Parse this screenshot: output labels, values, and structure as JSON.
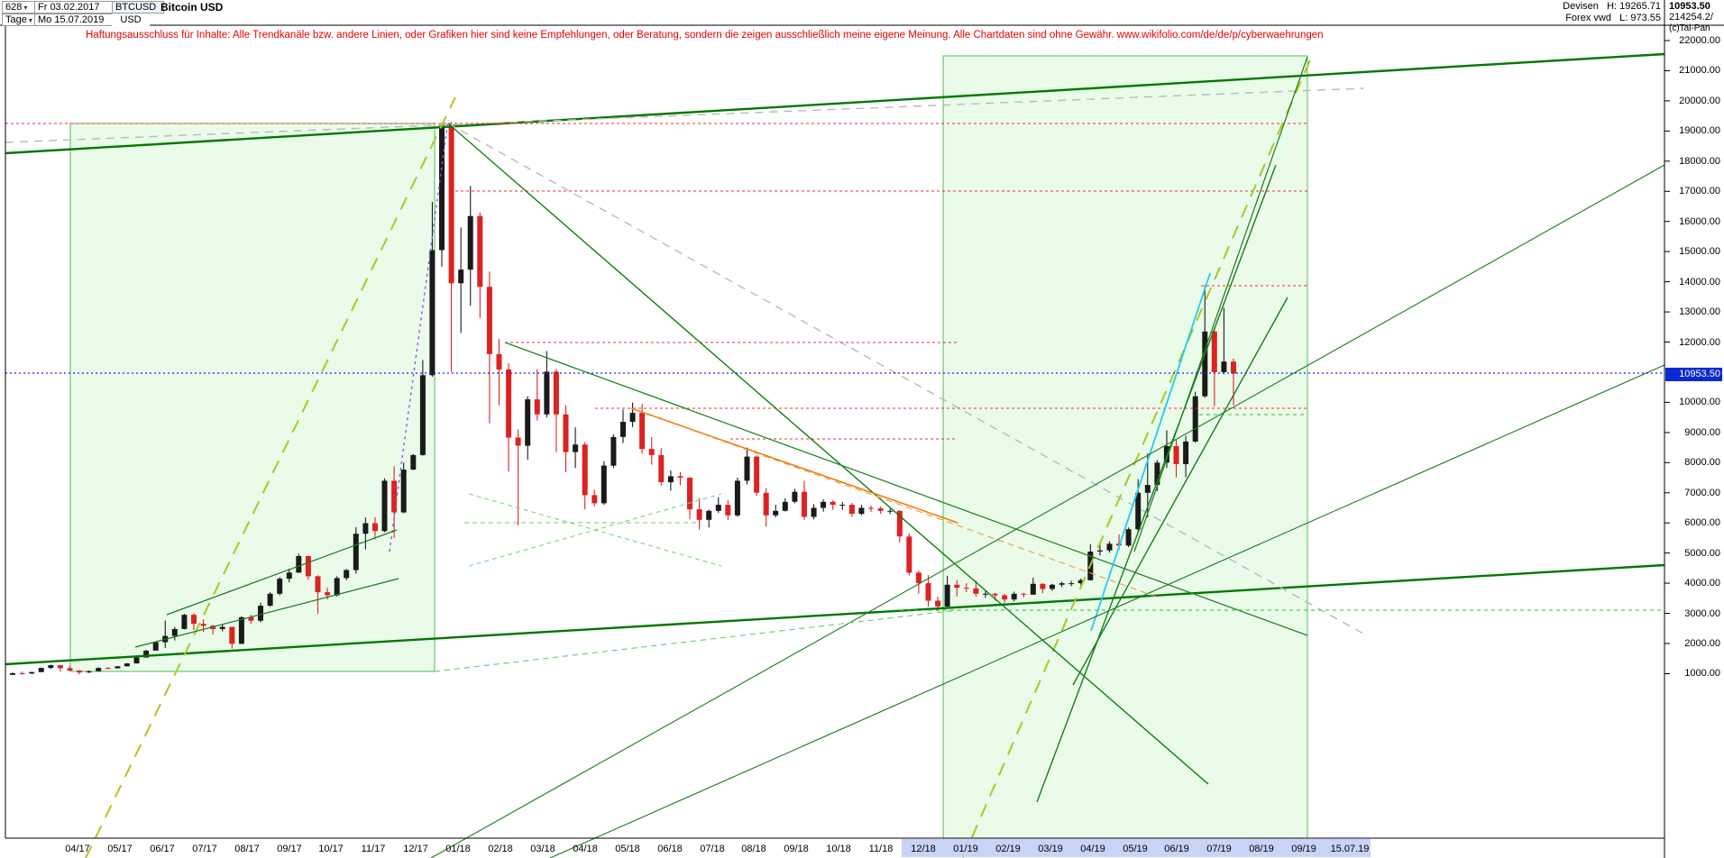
{
  "header": {
    "bars_count": "628",
    "start_date": "Fr 03.02.2017",
    "symbol": "BTCUSD",
    "name": "Bitcoin USD",
    "period": "Tage",
    "end_date": "Mo 15.07.2019",
    "currency": "USD",
    "market": "Devisen",
    "high_label": "H: 19265.71",
    "source": "Forex vwd",
    "low_label": "L: 973.55",
    "last_price": "10953.50",
    "volume": "214254.2/",
    "copyright": "(c)Tai-Pan"
  },
  "disclaimer": "Haftungsausschluss für Inhalte: Alle Trendkanäle bzw. andere Linien, oder Grafiken hier sind keine Empfehlungen, oder Beratung, sondern die zeigen ausschließlich meine eigene Meinung. Alle Chartdaten sind ohne Gewähr.  www.wikifolio.com/de/de/p/cyberwaehrungen",
  "current_price": {
    "value": 10953.5,
    "label": "10953.50",
    "color": "#0a2ad0"
  },
  "price_axis": {
    "values": [
      22000,
      21000,
      20000,
      19000,
      18000,
      17000,
      16000,
      15000,
      14000,
      13000,
      12000,
      10000,
      9000,
      8000,
      7000,
      6000,
      5000,
      4000,
      3000,
      2000,
      1000
    ]
  },
  "x_axis": {
    "labels": [
      "04/17",
      "05/17",
      "06/17",
      "07/17",
      "08/17",
      "09/17",
      "10/17",
      "11/17",
      "12/17",
      "01/18",
      "02/18",
      "03/18",
      "04/18",
      "05/18",
      "06/18",
      "07/18",
      "08/18",
      "09/18",
      "10/18",
      "11/18",
      "12/18",
      "01/19",
      "02/19",
      "03/19",
      "04/19",
      "05/19",
      "06/19",
      "07/19",
      "08/19",
      "09/19"
    ],
    "last_date_label": "15.07.19"
  },
  "chart_data": {
    "type": "candlestick",
    "title": "Bitcoin USD",
    "symbol": "BTCUSD",
    "period_high": 19265.71,
    "period_low": 973.55,
    "last": 10953.5,
    "x_start": "03.02.2017",
    "x_end": "15.07.2019",
    "y_axis": {
      "min": 1000,
      "max": 22000,
      "step": 1000
    },
    "colors": {
      "up": "#1a1a1a",
      "down": "#dd2222"
    },
    "candles": [
      [
        958,
        1040,
        955,
        1013
      ],
      [
        1013,
        1068,
        970,
        1000
      ],
      [
        1000,
        1060,
        990,
        1051
      ],
      [
        1051,
        1200,
        1045,
        1190
      ],
      [
        1190,
        1298,
        1150,
        1280
      ],
      [
        1280,
        1290,
        1060,
        1180
      ],
      [
        1180,
        1260,
        1090,
        1100
      ],
      [
        1100,
        1120,
        975,
        1040
      ],
      [
        1040,
        1105,
        1020,
        1080
      ],
      [
        1080,
        1215,
        1075,
        1188
      ],
      [
        1188,
        1220,
        1150,
        1177
      ],
      [
        1177,
        1250,
        1170,
        1243
      ],
      [
        1243,
        1347,
        1240,
        1340
      ],
      [
        1340,
        1585,
        1335,
        1534
      ],
      [
        1534,
        1795,
        1530,
        1762
      ],
      [
        1762,
        2070,
        1760,
        2041
      ],
      [
        2041,
        2760,
        1850,
        2250
      ],
      [
        2250,
        2550,
        2100,
        2480
      ],
      [
        2480,
        2980,
        2470,
        2950
      ],
      [
        2950,
        3000,
        2450,
        2655
      ],
      [
        2655,
        2800,
        2380,
        2590
      ],
      [
        2590,
        2620,
        2300,
        2480
      ],
      [
        2480,
        2640,
        2400,
        2550
      ],
      [
        2550,
        2560,
        1830,
        1990
      ],
      [
        1990,
        2900,
        1980,
        2870
      ],
      [
        2870,
        2950,
        2650,
        2757
      ],
      [
        2757,
        3350,
        2700,
        3252
      ],
      [
        3252,
        3700,
        3220,
        3650
      ],
      [
        3650,
        4200,
        3600,
        4150
      ],
      [
        4150,
        4480,
        4030,
        4352
      ],
      [
        4352,
        4980,
        4340,
        4900
      ],
      [
        4900,
        4920,
        4110,
        4230
      ],
      [
        4230,
        4260,
        2980,
        3700
      ],
      [
        3700,
        3850,
        3460,
        3600
      ],
      [
        3600,
        4230,
        3560,
        4170
      ],
      [
        4170,
        4470,
        4100,
        4435
      ],
      [
        4435,
        5860,
        4320,
        5640
      ],
      [
        5640,
        6180,
        5120,
        5990
      ],
      [
        5990,
        6190,
        5450,
        5730
      ],
      [
        5730,
        7480,
        5690,
        7400
      ],
      [
        7400,
        7880,
        5500,
        6350
      ],
      [
        6350,
        8000,
        6320,
        7770
      ],
      [
        7770,
        8290,
        7750,
        8250
      ],
      [
        8250,
        11400,
        8230,
        10900
      ],
      [
        10900,
        16650,
        10850,
        15050
      ],
      [
        15050,
        19266,
        14500,
        19190
      ],
      [
        19190,
        19300,
        11000,
        13950
      ],
      [
        13950,
        15800,
        12300,
        14400
      ],
      [
        14400,
        17180,
        13200,
        16180
      ],
      [
        16180,
        16300,
        12800,
        13830
      ],
      [
        13830,
        14340,
        9300,
        11600
      ],
      [
        11600,
        12100,
        9900,
        11090
      ],
      [
        11090,
        11300,
        7700,
        8830
      ],
      [
        8830,
        9100,
        5920,
        8560
      ],
      [
        8560,
        10200,
        8100,
        10100
      ],
      [
        10100,
        11100,
        9400,
        9600
      ],
      [
        9600,
        11700,
        9500,
        11020
      ],
      [
        11020,
        11100,
        8350,
        9600
      ],
      [
        9600,
        9900,
        7680,
        8350
      ],
      [
        8350,
        9170,
        7820,
        8600
      ],
      [
        8600,
        8680,
        6450,
        6920
      ],
      [
        6920,
        7100,
        6550,
        6650
      ],
      [
        6650,
        8050,
        6600,
        7900
      ],
      [
        7900,
        8940,
        7830,
        8850
      ],
      [
        8850,
        9760,
        8650,
        9350
      ],
      [
        9350,
        9990,
        9180,
        9650
      ],
      [
        9650,
        9950,
        8300,
        8450
      ],
      [
        8450,
        8850,
        7930,
        8250
      ],
      [
        8250,
        8480,
        7240,
        7350
      ],
      [
        7350,
        7750,
        7070,
        7550
      ],
      [
        7550,
        7690,
        7250,
        7500
      ],
      [
        7500,
        7520,
        6120,
        6450
      ],
      [
        6450,
        6830,
        5780,
        6100
      ],
      [
        6100,
        6440,
        5850,
        6400
      ],
      [
        6400,
        6850,
        6330,
        6600
      ],
      [
        6600,
        6750,
        6100,
        6250
      ],
      [
        6250,
        7500,
        6200,
        7400
      ],
      [
        7400,
        8500,
        7280,
        8200
      ],
      [
        8200,
        8240,
        6900,
        7000
      ],
      [
        7000,
        7150,
        5880,
        6250
      ],
      [
        6250,
        6600,
        6180,
        6400
      ],
      [
        6400,
        6820,
        6380,
        6700
      ],
      [
        6700,
        7130,
        6650,
        7030
      ],
      [
        7030,
        7400,
        6100,
        6200
      ],
      [
        6200,
        6620,
        6120,
        6500
      ],
      [
        6500,
        6780,
        6370,
        6700
      ],
      [
        6700,
        6750,
        6430,
        6600
      ],
      [
        6600,
        6700,
        6430,
        6600
      ],
      [
        6600,
        6660,
        6200,
        6300
      ],
      [
        6300,
        6600,
        6260,
        6500
      ],
      [
        6500,
        6570,
        6370,
        6480
      ],
      [
        6480,
        6540,
        6300,
        6400
      ],
      [
        6400,
        6480,
        6290,
        6400
      ],
      [
        6400,
        6420,
        5350,
        5550
      ],
      [
        5550,
        5650,
        4250,
        4350
      ],
      [
        4350,
        4420,
        3650,
        4000
      ],
      [
        4000,
        4270,
        3220,
        3420
      ],
      [
        3420,
        3560,
        3190,
        3230
      ],
      [
        3230,
        4240,
        3200,
        3950
      ],
      [
        3950,
        4110,
        3560,
        3850
      ],
      [
        3850,
        4000,
        3700,
        3830
      ],
      [
        3830,
        4080,
        3550,
        3650
      ],
      [
        3650,
        3740,
        3520,
        3650
      ],
      [
        3650,
        3680,
        3420,
        3600
      ],
      [
        3600,
        3640,
        3350,
        3460
      ],
      [
        3460,
        3720,
        3400,
        3650
      ],
      [
        3650,
        3680,
        3530,
        3620
      ],
      [
        3620,
        4180,
        3610,
        3980
      ],
      [
        3980,
        4000,
        3670,
        3810
      ],
      [
        3810,
        3980,
        3750,
        3950
      ],
      [
        3950,
        4050,
        3870,
        4000
      ],
      [
        4000,
        4080,
        3900,
        4000
      ],
      [
        4000,
        4150,
        3930,
        4100
      ],
      [
        4100,
        5300,
        4090,
        5050
      ],
      [
        5050,
        5320,
        4920,
        5090
      ],
      [
        5090,
        5390,
        5010,
        5310
      ],
      [
        5310,
        5620,
        5110,
        5250
      ],
      [
        5250,
        5850,
        5200,
        5790
      ],
      [
        5790,
        7450,
        5700,
        7000
      ],
      [
        7000,
        8300,
        6180,
        7260
      ],
      [
        7260,
        8080,
        7050,
        8000
      ],
      [
        8000,
        9070,
        7820,
        8550
      ],
      [
        8550,
        8750,
        7510,
        7950
      ],
      [
        7950,
        8890,
        7520,
        8700
      ],
      [
        8700,
        10350,
        8660,
        10200
      ],
      [
        10200,
        13880,
        10150,
        12350
      ],
      [
        12350,
        12450,
        9870,
        11000
      ],
      [
        11000,
        13130,
        10930,
        11350
      ],
      [
        11350,
        11450,
        9900,
        10954
      ]
    ]
  },
  "annotations": {
    "boxes": [
      [
        78,
        137,
        404,
        608
      ],
      [
        1046,
        62,
        404,
        868
      ]
    ],
    "box_style": {
      "fill": "rgba(170,240,170,0.25)",
      "stroke": "#55bb55"
    },
    "lines": [
      [
        6,
        170,
        1846,
        60,
        "#007700",
        2.4,
        ""
      ],
      [
        6,
        737,
        1846,
        627,
        "#007700",
        2.4,
        ""
      ],
      [
        6,
        158,
        1512,
        98,
        "#b9b9b9",
        1.4,
        "9,7"
      ],
      [
        497,
        137,
        1512,
        703,
        "#b9b9b9",
        1.4,
        "9,7"
      ],
      [
        6,
        137,
        1450,
        137,
        "#ff2a2a",
        1.1,
        "3,3"
      ],
      [
        505,
        212,
        1450,
        212,
        "#ff2a2a",
        1.1,
        "3,3"
      ],
      [
        560,
        380,
        1062,
        380,
        "#ff2a2a",
        1.1,
        "3,3"
      ],
      [
        660,
        453,
        1450,
        453,
        "#ff2a2a",
        1.1,
        "3,3"
      ],
      [
        810,
        487,
        1062,
        487,
        "#ff2a2a",
        1.1,
        "3,3"
      ],
      [
        1332,
        317,
        1450,
        317,
        "#ff2a2a",
        1.1,
        "3,3"
      ],
      [
        95,
        952,
        505,
        108,
        "#aac822",
        2,
        "15,10"
      ],
      [
        1068,
        952,
        1455,
        62,
        "#aac822",
        2,
        "15,10"
      ],
      [
        497,
        137,
        1340,
        870,
        "#007700",
        1.3,
        ""
      ],
      [
        560,
        380,
        1450,
        705,
        "#228822",
        1.3,
        ""
      ],
      [
        700,
        453,
        1062,
        580,
        "#ee7700",
        1.5,
        ""
      ],
      [
        700,
        453,
        1285,
        663,
        "#ee9944",
        1.1,
        "7,5"
      ],
      [
        432,
        612,
        497,
        133,
        "#7b5bee",
        1.4,
        "3,4"
      ],
      [
        1210,
        700,
        1342,
        303,
        "#22ccee",
        1.8,
        ""
      ],
      [
        1150,
        890,
        1415,
        183,
        "#1a7a1a",
        1.4,
        ""
      ],
      [
        1190,
        760,
        1428,
        330,
        "#1a7a1a",
        1.4,
        ""
      ],
      [
        1258,
        612,
        1450,
        63,
        "#1a7a1a",
        1.2,
        ""
      ],
      [
        610,
        952,
        1846,
        405,
        "#1a7a1a",
        1.1,
        ""
      ],
      [
        1846,
        183,
        478,
        952,
        "#1a7a1a",
        1.1,
        ""
      ],
      [
        990,
        677,
        1846,
        677,
        "#33bb33",
        1.1,
        "4,4"
      ],
      [
        1330,
        460,
        1450,
        460,
        "#33bb33",
        1.1,
        "4,4"
      ],
      [
        515,
        580,
        775,
        580,
        "#66cc66",
        1.1,
        "5,4"
      ],
      [
        520,
        628,
        800,
        548,
        "#7bd87b",
        1.1,
        "5,4"
      ],
      [
        520,
        548,
        800,
        628,
        "#7bd87b",
        1.1,
        "5,4"
      ],
      [
        185,
        682,
        440,
        588,
        "#1a7a1a",
        1.2,
        ""
      ],
      [
        150,
        718,
        442,
        642,
        "#1a7a1a",
        1.2,
        ""
      ],
      [
        482,
        745,
        1062,
        677,
        "#66cc66",
        1.1,
        "6,5"
      ],
      [
        6,
        414,
        1846,
        414,
        "#2222dd",
        1.2,
        "2,3"
      ]
    ]
  }
}
